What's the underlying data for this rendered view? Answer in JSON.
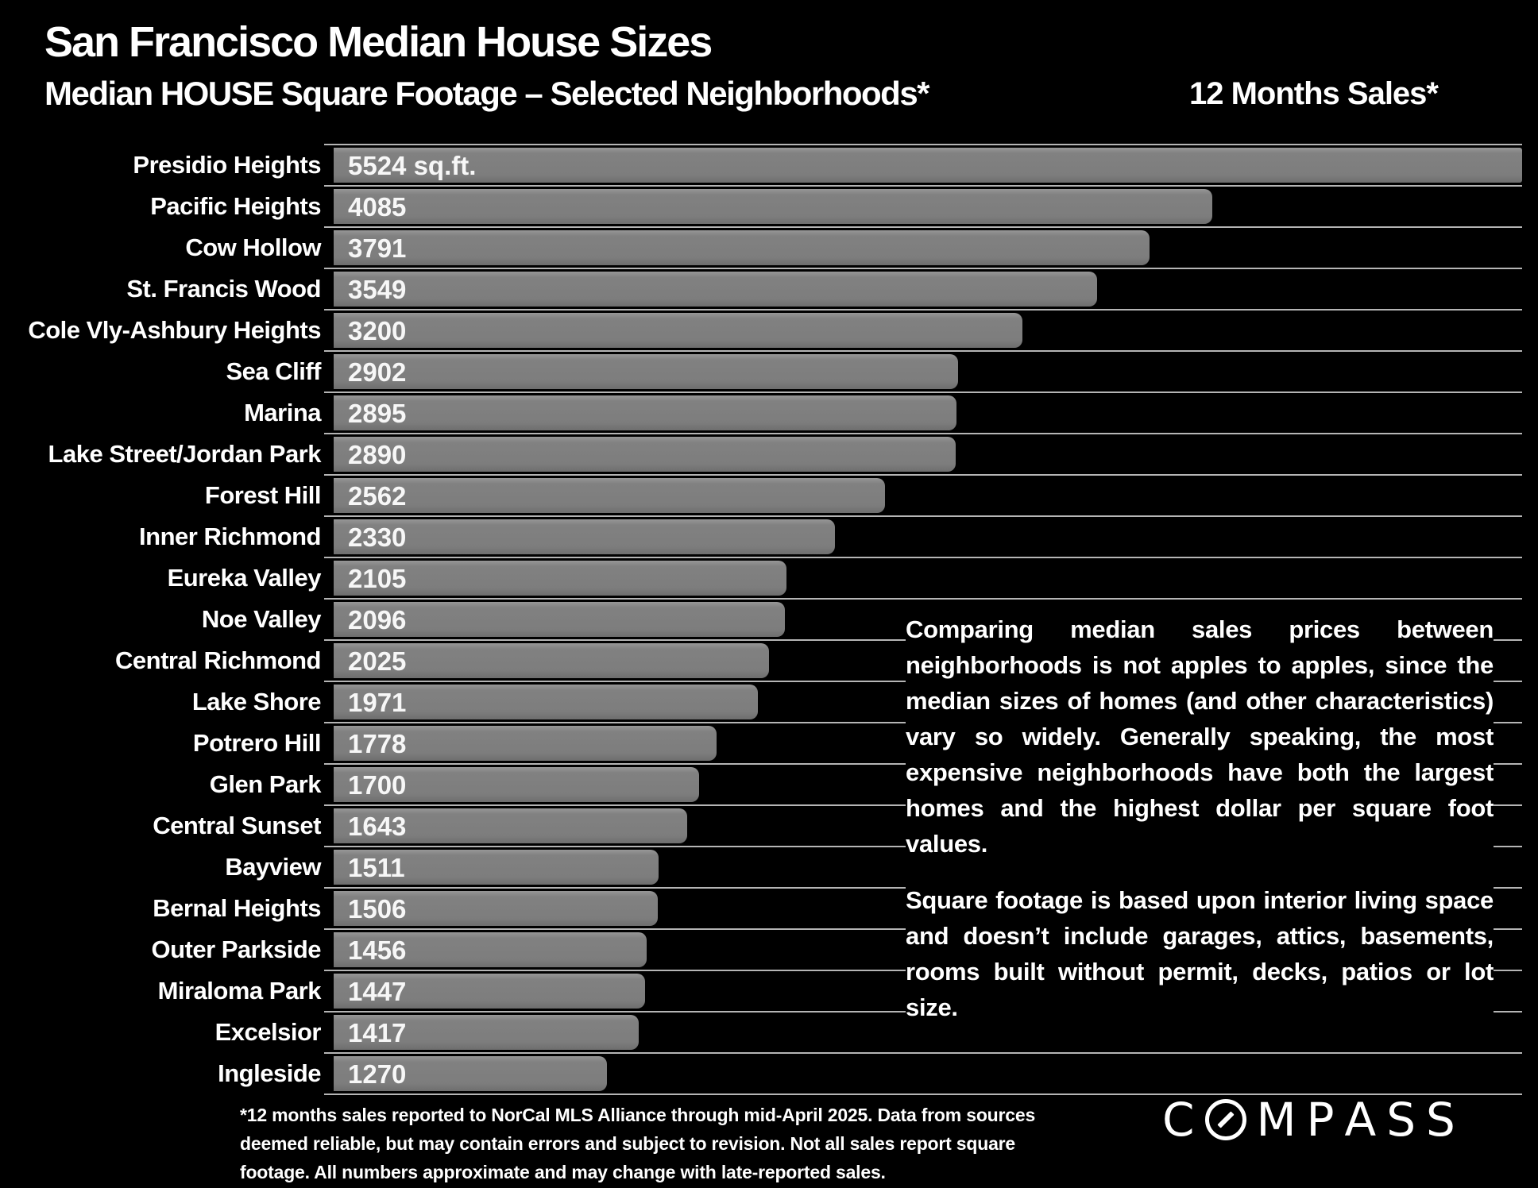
{
  "header": {
    "title": "San Francisco Median House Sizes",
    "subtitle": "Median HOUSE Square Footage – Selected Neighborhoods*",
    "sales_note": "12 Months Sales*"
  },
  "chart_data": {
    "type": "bar",
    "orientation": "horizontal",
    "title": "San Francisco Median House Sizes",
    "xlabel": "Median house square footage (sq.ft.)",
    "xlim": [
      0,
      5524
    ],
    "grid": true,
    "legend": "none",
    "categories": [
      "Presidio Heights",
      "Pacific Heights",
      "Cow Hollow",
      "St. Francis Wood",
      "Cole Vly-Ashbury Heights",
      "Sea Cliff",
      "Marina",
      "Lake Street/Jordan Park",
      "Forest Hill",
      "Inner Richmond",
      "Eureka Valley",
      "Noe Valley",
      "Central Richmond",
      "Lake Shore",
      "Potrero Hill",
      "Glen Park",
      "Central Sunset",
      "Bayview",
      "Bernal Heights",
      "Outer Parkside",
      "Miraloma Park",
      "Excelsior",
      "Ingleside"
    ],
    "values": [
      5524,
      4085,
      3791,
      3549,
      3200,
      2902,
      2895,
      2890,
      2562,
      2330,
      2105,
      2096,
      2025,
      1971,
      1778,
      1700,
      1643,
      1511,
      1506,
      1456,
      1447,
      1417,
      1270
    ],
    "value_labels": [
      "5524 sq.ft.",
      "4085",
      "3791",
      "3549",
      "3200",
      "2902",
      "2895",
      "2890",
      "2562",
      "2330",
      "2105",
      "2096",
      "2025",
      "1971",
      "1778",
      "1700",
      "1643",
      "1511",
      "1506",
      "1456",
      "1447",
      "1417",
      "1270"
    ],
    "bar_color": "#7f7f7f",
    "gridline_color": "#b5b5b5",
    "text_color": "#ffffff",
    "background": "#000000"
  },
  "commentary": {
    "paragraph1": "Comparing median sales prices between neighborhoods is not apples to apples, since the median sizes of homes (and other characteristics) vary so widely. Generally speaking, the most expensive neighborhoods have both the largest homes and the highest dollar per square foot values.",
    "paragraph2": "Square footage is based upon interior living space and doesn’t include garages, attics, basements, rooms built without permit, decks, patios or lot size."
  },
  "footnote": {
    "lines": [
      "*12 months sales reported to NorCal MLS Alliance through mid-April 2025. Data from sources",
      "deemed reliable, but may contain errors and subject to revision. Not all sales report square",
      "footage. All numbers approximate and may change with late-reported sales."
    ]
  },
  "logo": {
    "text": "COMPASS"
  }
}
